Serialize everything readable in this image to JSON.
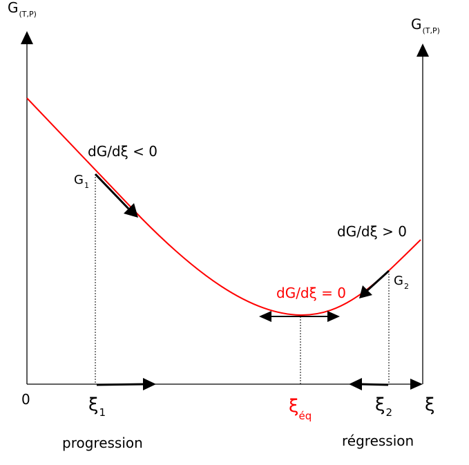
{
  "axes": {
    "left_y_label": "G",
    "left_y_subscript": "(T,P)",
    "right_y_label": "G",
    "right_y_subscript": "(T,P)",
    "x_label": "ξ",
    "origin_label": "0"
  },
  "points": {
    "xi1_label": "ξ",
    "xi1_subscript": "1",
    "xieq_label": "ξ",
    "xieq_subscript": "éq",
    "xi2_label": "ξ",
    "xi2_subscript": "2",
    "g1_label": "G",
    "g1_subscript": "1",
    "g2_label": "G",
    "g2_subscript": "2"
  },
  "annotations": {
    "slope_negative": "dG/dξ < 0",
    "slope_zero": "dG/dξ = 0",
    "slope_positive": "dG/dξ > 0",
    "progression": "progression",
    "regression": "régression"
  },
  "colors": {
    "curve": "#ff0000",
    "equilibrium": "#ff0000",
    "axes": "#000000",
    "text": "#000000"
  }
}
